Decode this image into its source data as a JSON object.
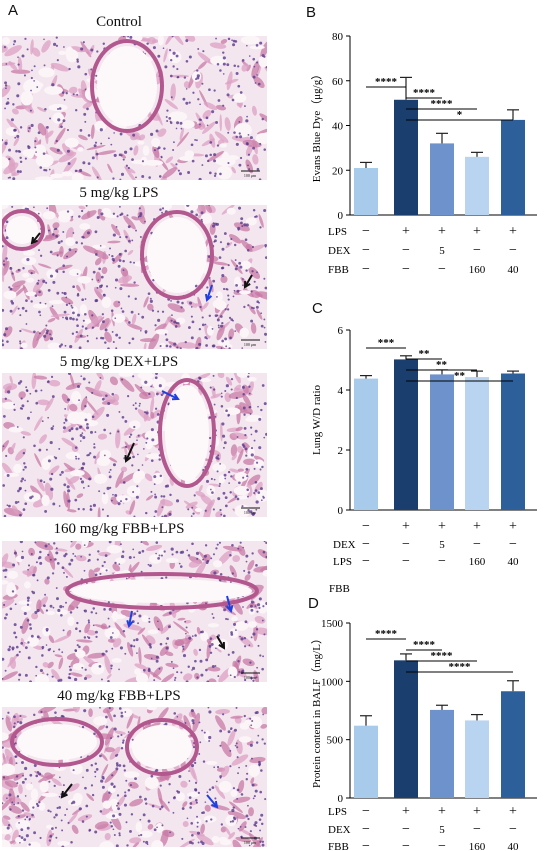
{
  "panels": {
    "A": {
      "letter": "A",
      "images": [
        {
          "title": "Control",
          "scale_bar": "100 μm",
          "arrows": []
        },
        {
          "title": "5 mg/kg LPS",
          "scale_bar": "100 μm",
          "arrows": [
            "black",
            "blue",
            "black"
          ]
        },
        {
          "title": "5 mg/kg DEX+LPS",
          "scale_bar": "100 μm",
          "arrows": [
            "blue",
            "black"
          ]
        },
        {
          "title": "160 mg/kg FBB+LPS",
          "scale_bar": "100 μm",
          "arrows": [
            "blue",
            "blue",
            "black"
          ]
        },
        {
          "title": "40 mg/kg FBB+LPS",
          "scale_bar": "100 μm",
          "arrows": [
            "black",
            "blue"
          ]
        }
      ]
    },
    "B": {
      "letter": "B"
    },
    "C": {
      "letter": "C"
    },
    "D": {
      "letter": "D"
    }
  },
  "chart_data": [
    {
      "id": "B",
      "type": "bar",
      "ylabel": "Evans Blue Dye（μg/g）",
      "ylim": [
        0,
        80
      ],
      "yticks": [
        0,
        20,
        40,
        60,
        80
      ],
      "values": [
        21,
        51.5,
        32,
        26,
        42.5
      ],
      "errors": [
        2.5,
        10,
        4.5,
        2,
        4.5
      ],
      "colors": [
        "#a8cbec",
        "#1a3f6f",
        "#6e93cc",
        "#b8d4f0",
        "#2d5f9a"
      ],
      "treatment_rows": [
        {
          "label": "LPS",
          "cells": [
            "−",
            "+",
            "+",
            "+",
            "+"
          ]
        },
        {
          "label": "DEX",
          "cells": [
            "−",
            "−",
            "5",
            "−",
            "−"
          ]
        },
        {
          "label": "FBB",
          "cells": [
            "−",
            "−",
            "−",
            "160",
            "40"
          ]
        }
      ],
      "significance": [
        {
          "from": 0,
          "to": 1,
          "label": "****"
        },
        {
          "from": 1,
          "to": 2,
          "label": "****"
        },
        {
          "from": 1,
          "to": 3,
          "label": "****"
        },
        {
          "from": 1,
          "to": 4,
          "label": "*"
        }
      ]
    },
    {
      "id": "C",
      "type": "bar",
      "ylabel": "Lung W/D ratio",
      "ylim": [
        0,
        6
      ],
      "yticks": [
        0,
        2,
        4,
        6
      ],
      "values": [
        4.38,
        5.02,
        4.52,
        4.43,
        4.55
      ],
      "errors": [
        0.1,
        0.12,
        0.15,
        0.2,
        0.08
      ],
      "colors": [
        "#a8cbec",
        "#1a3f6f",
        "#6e93cc",
        "#b8d4f0",
        "#2d5f9a"
      ],
      "treatment_rows": [
        {
          "label": "",
          "cells": [
            "−",
            "+",
            "+",
            "+",
            "+"
          ]
        },
        {
          "label": "DEX",
          "cells": [
            "−",
            "−",
            "5",
            "−",
            "−"
          ]
        },
        {
          "label": "LPS",
          "cells": [
            "−",
            "−",
            "−",
            "160",
            "40"
          ]
        }
      ],
      "extra_label": "FBB",
      "significance": [
        {
          "from": 0,
          "to": 1,
          "label": "***"
        },
        {
          "from": 1,
          "to": 2,
          "label": "**"
        },
        {
          "from": 1,
          "to": 3,
          "label": "**"
        },
        {
          "from": 1,
          "to": 4,
          "label": "**"
        }
      ]
    },
    {
      "id": "D",
      "type": "bar",
      "ylabel": "Protein content in BALF（mg/L）",
      "ylim": [
        0,
        1500
      ],
      "yticks": [
        0,
        500,
        1000,
        1500
      ],
      "values": [
        620,
        1180,
        755,
        665,
        915
      ],
      "errors": [
        85,
        55,
        40,
        50,
        90
      ],
      "colors": [
        "#a8cbec",
        "#1a3f6f",
        "#6e93cc",
        "#b8d4f0",
        "#2d5f9a"
      ],
      "treatment_rows": [
        {
          "label": "LPS",
          "cells": [
            "−",
            "+",
            "+",
            "+",
            "+"
          ]
        },
        {
          "label": "DEX",
          "cells": [
            "−",
            "−",
            "5",
            "−",
            "−"
          ]
        },
        {
          "label": "FBB",
          "cells": [
            "−",
            "−",
            "−",
            "160",
            "40"
          ]
        }
      ],
      "significance": [
        {
          "from": 0,
          "to": 1,
          "label": "****"
        },
        {
          "from": 1,
          "to": 2,
          "label": "****"
        },
        {
          "from": 1,
          "to": 3,
          "label": "****"
        },
        {
          "from": 1,
          "to": 4,
          "label": "****"
        }
      ]
    }
  ]
}
